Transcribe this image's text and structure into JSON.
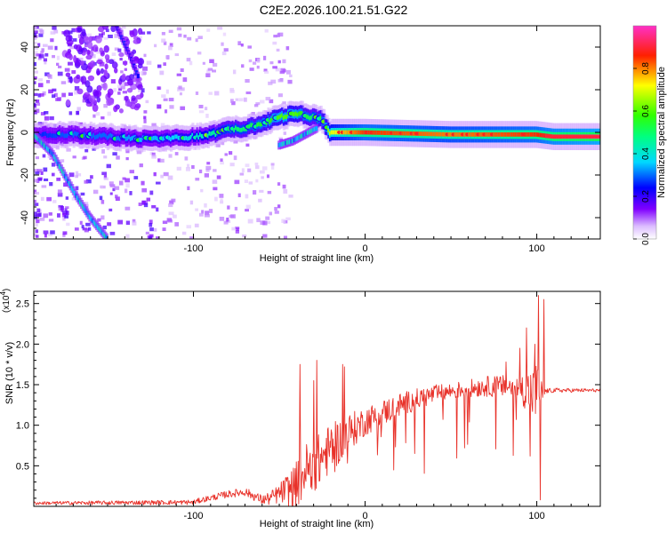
{
  "title": "C2E2.2026.100.21.51.G22",
  "chart_data": [
    {
      "type": "heatmap",
      "name": "spectrogram",
      "xlabel": "Height of straight line (km)",
      "ylabel": "Frequency (Hz)",
      "xlim": [
        -193,
        137
      ],
      "ylim": [
        -50,
        50
      ],
      "xticks": [
        -100,
        0,
        100
      ],
      "xtick_labels": [
        "-100",
        "0",
        "100"
      ],
      "yticks": [
        -40,
        -20,
        0,
        20,
        40
      ],
      "ytick_labels": [
        "-40",
        "-20",
        "0",
        "20",
        "40"
      ],
      "colorbar": {
        "label": "Normalized spectral amplitude",
        "range": [
          0,
          1
        ],
        "ticks": [
          0,
          0.2,
          0.4,
          0.6,
          0.8
        ],
        "tick_labels": [
          "0.0",
          "0.2",
          "0.4",
          "0.6",
          "0.8"
        ],
        "colors": [
          "#ffffff",
          "#d9b3ff",
          "#8000ff",
          "#0000ff",
          "#00ffff",
          "#00ff00",
          "#ffff00",
          "#ff0000",
          "#ff33cc"
        ]
      },
      "ridge": {
        "x": [
          -193,
          -170,
          -150,
          -130,
          -115,
          -100,
          -90,
          -80,
          -70,
          -60,
          -50,
          -45,
          -40,
          -35,
          -30,
          -25,
          -22,
          -20,
          0,
          50,
          100,
          110,
          137
        ],
        "freq": [
          -1,
          -1,
          -2,
          -3,
          -3,
          -2,
          -1,
          1,
          2,
          4,
          7,
          8,
          9,
          8,
          7,
          6,
          2,
          0,
          0,
          -1,
          -1,
          -2,
          -2
        ],
        "amplitude": [
          0.25,
          0.3,
          0.3,
          0.35,
          0.35,
          0.4,
          0.45,
          0.5,
          0.5,
          0.55,
          0.6,
          0.6,
          0.6,
          0.55,
          0.5,
          0.55,
          0.6,
          0.7,
          0.85,
          0.8,
          0.85,
          0.9,
          0.95
        ]
      },
      "secondary_ridges": [
        {
          "x": [
            -193,
            -182,
            -175,
            -168,
            -160,
            -150
          ],
          "freq": [
            -1,
            -10,
            -20,
            -30,
            -40,
            -50
          ],
          "amplitude": 0.35
        },
        {
          "x": [
            -50,
            -42,
            -35,
            -28
          ],
          "freq": [
            -6,
            -4,
            -1,
            2
          ],
          "amplitude": 0.35
        },
        {
          "x": [
            -145,
            -138,
            -132
          ],
          "freq": [
            50,
            38,
            26
          ],
          "amplitude": 0.2
        }
      ]
    },
    {
      "type": "line",
      "name": "snr",
      "xlabel": "Height of straight line (km)",
      "ylabel": "SNR (10 * v/v)",
      "scale_note_base": "(x10",
      "scale_note_exp": "4",
      "scale_note_close": ")",
      "xlim": [
        -193,
        137
      ],
      "ylim": [
        0,
        2.65
      ],
      "xticks": [
        -100,
        0,
        100
      ],
      "xtick_labels": [
        "-100",
        "0",
        "100"
      ],
      "yticks": [
        0.5,
        1.0,
        1.5,
        2.0,
        2.5
      ],
      "ytick_labels": [
        "0.5",
        "1.0",
        "1.5",
        "2.0",
        "2.5"
      ],
      "color": "#e8322a",
      "envelope": {
        "x": [
          -193,
          -100,
          -95,
          -80,
          -70,
          -60,
          -55,
          -48,
          -40,
          -35,
          -30,
          -25,
          -20,
          -15,
          -10,
          0,
          10,
          20,
          30,
          40,
          50,
          60,
          70,
          80,
          90,
          95,
          100,
          103,
          105,
          110,
          120,
          137
        ],
        "y": [
          0.04,
          0.05,
          0.08,
          0.15,
          0.18,
          0.08,
          0.1,
          0.18,
          0.25,
          0.45,
          0.5,
          0.6,
          0.72,
          0.8,
          0.9,
          1.05,
          1.15,
          1.25,
          1.32,
          1.38,
          1.42,
          1.45,
          1.48,
          1.48,
          1.45,
          1.42,
          1.4,
          1.38,
          1.42,
          1.43,
          1.43,
          1.43
        ]
      },
      "noise": {
        "x": [
          -193,
          -100,
          -60,
          -50,
          -40,
          -30,
          -20,
          0,
          50,
          90,
          100,
          105,
          137
        ],
        "amp": [
          0.02,
          0.03,
          0.06,
          0.12,
          0.3,
          0.35,
          0.3,
          0.18,
          0.1,
          0.15,
          0.4,
          0.03,
          0.02
        ]
      },
      "spikes": [
        {
          "x": -38,
          "y": 1.75
        },
        {
          "x": -30,
          "y": 1.55
        },
        {
          "x": -28,
          "y": 1.8
        },
        {
          "x": -13,
          "y": 1.75
        },
        {
          "x": -12,
          "y": 1.72
        },
        {
          "x": 58,
          "y": 0.72
        },
        {
          "x": 82,
          "y": 1.78
        },
        {
          "x": 90,
          "y": 1.95
        },
        {
          "x": 94,
          "y": 2.2
        },
        {
          "x": 99,
          "y": 2.0
        },
        {
          "x": 101,
          "y": 2.6
        },
        {
          "x": 104,
          "y": 2.55
        },
        {
          "x": 102,
          "y": 0.08
        },
        {
          "x": 96,
          "y": 0.62
        }
      ]
    }
  ]
}
